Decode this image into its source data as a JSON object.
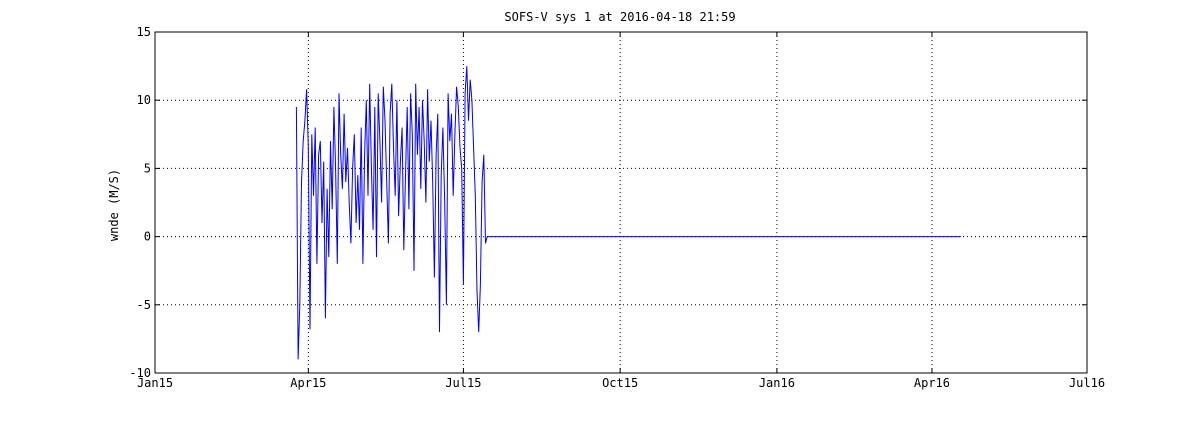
{
  "chart_data": {
    "type": "line",
    "title": "SOFS-V sys 1 at 2016-04-18 21:59",
    "xlabel": "",
    "ylabel": "wnde (M/S)",
    "x_ticks": [
      "2015-01-01",
      "2015-04-01",
      "2015-07-01",
      "2015-10-01",
      "2016-01-01",
      "2016-04-01",
      "2016-07-01"
    ],
    "x_tick_labels": [
      "Jan15",
      "Apr15",
      "Jul15",
      "Oct15",
      "Jan16",
      "Apr16",
      "Jul16"
    ],
    "xlim": [
      "2015-01-01",
      "2016-07-01"
    ],
    "y_ticks": [
      -10,
      -5,
      0,
      5,
      10,
      15
    ],
    "ylim": [
      -10,
      15
    ],
    "grid": true,
    "legend": "none",
    "series": [
      {
        "color": "#0000ff",
        "x": [
          "2015-03-25",
          "2015-03-26",
          "2015-03-27",
          "2015-03-28",
          "2015-03-29",
          "2015-03-30",
          "2015-03-31",
          "2015-04-01",
          "2015-04-02",
          "2015-04-03",
          "2015-04-04",
          "2015-04-05",
          "2015-04-06",
          "2015-04-07",
          "2015-04-08",
          "2015-04-09",
          "2015-04-10",
          "2015-04-11",
          "2015-04-12",
          "2015-04-13",
          "2015-04-14",
          "2015-04-15",
          "2015-04-16",
          "2015-04-17",
          "2015-04-18",
          "2015-04-19",
          "2015-04-20",
          "2015-04-21",
          "2015-04-22",
          "2015-04-23",
          "2015-04-24",
          "2015-04-25",
          "2015-04-26",
          "2015-04-27",
          "2015-04-28",
          "2015-04-29",
          "2015-04-30",
          "2015-05-01",
          "2015-05-02",
          "2015-05-03",
          "2015-05-04",
          "2015-05-05",
          "2015-05-06",
          "2015-05-07",
          "2015-05-08",
          "2015-05-09",
          "2015-05-10",
          "2015-05-11",
          "2015-05-12",
          "2015-05-13",
          "2015-05-14",
          "2015-05-15",
          "2015-05-16",
          "2015-05-17",
          "2015-05-18",
          "2015-05-19",
          "2015-05-20",
          "2015-05-21",
          "2015-05-22",
          "2015-05-23",
          "2015-05-24",
          "2015-05-25",
          "2015-05-26",
          "2015-05-27",
          "2015-05-28",
          "2015-05-29",
          "2015-05-30",
          "2015-05-31",
          "2015-06-01",
          "2015-06-02",
          "2015-06-03",
          "2015-06-04",
          "2015-06-05",
          "2015-06-06",
          "2015-06-07",
          "2015-06-08",
          "2015-06-09",
          "2015-06-10",
          "2015-06-11",
          "2015-06-12",
          "2015-06-13",
          "2015-06-14",
          "2015-06-15",
          "2015-06-16",
          "2015-06-17",
          "2015-06-18",
          "2015-06-19",
          "2015-06-20",
          "2015-06-21",
          "2015-06-22",
          "2015-06-23",
          "2015-06-24",
          "2015-06-25",
          "2015-06-26",
          "2015-06-27",
          "2015-06-28",
          "2015-06-29",
          "2015-06-30",
          "2015-07-01",
          "2015-07-02",
          "2015-07-03",
          "2015-07-04",
          "2015-07-05",
          "2015-07-06",
          "2015-07-07",
          "2015-07-08",
          "2015-07-09",
          "2015-07-10",
          "2015-07-11",
          "2015-07-12",
          "2015-07-13",
          "2015-07-14",
          "2015-07-15",
          "2015-07-20",
          "2015-08-01",
          "2015-09-01",
          "2015-10-01",
          "2015-11-01",
          "2015-12-01",
          "2016-01-01",
          "2016-02-01",
          "2016-03-01",
          "2016-04-01",
          "2016-04-18"
        ],
        "y": [
          9.5,
          -9.0,
          -5.0,
          4.0,
          7.0,
          8.5,
          10.8,
          6.5,
          -6.8,
          7.5,
          3.0,
          8.0,
          -2.0,
          6.0,
          7.0,
          1.0,
          5.5,
          -6.0,
          3.5,
          -1.5,
          7.0,
          2.0,
          9.5,
          5.0,
          -2.0,
          10.5,
          6.0,
          3.5,
          9.0,
          4.0,
          6.5,
          2.5,
          -0.5,
          5.0,
          7.5,
          1.0,
          4.5,
          0.5,
          8.0,
          -2.0,
          6.0,
          10.0,
          3.0,
          11.2,
          5.0,
          0.5,
          9.5,
          -1.5,
          10.5,
          7.0,
          2.5,
          11.0,
          8.5,
          4.0,
          -0.5,
          9.0,
          11.2,
          6.5,
          3.0,
          10.0,
          1.5,
          5.5,
          8.0,
          -1.0,
          4.5,
          9.5,
          2.0,
          10.5,
          7.5,
          -2.5,
          11.2,
          6.0,
          9.5,
          3.5,
          10.0,
          7.0,
          2.5,
          10.8,
          5.5,
          8.5,
          4.0,
          -3.0,
          6.0,
          9.0,
          -7.0,
          4.5,
          8.0,
          2.5,
          -5.0,
          10.5,
          7.0,
          9.0,
          3.0,
          7.5,
          11.0,
          9.5,
          6.5,
          5.0,
          -3.5,
          10.5,
          12.5,
          8.5,
          11.5,
          10.0,
          6.5,
          3.0,
          -4.0,
          -7.0,
          -3.5,
          4.0,
          6.0,
          -0.5,
          0.0,
          0.0,
          0.0,
          0.0,
          0.0,
          0.0,
          0.0,
          0.0,
          0.0,
          0.0,
          0.0,
          0.0
        ]
      }
    ]
  }
}
